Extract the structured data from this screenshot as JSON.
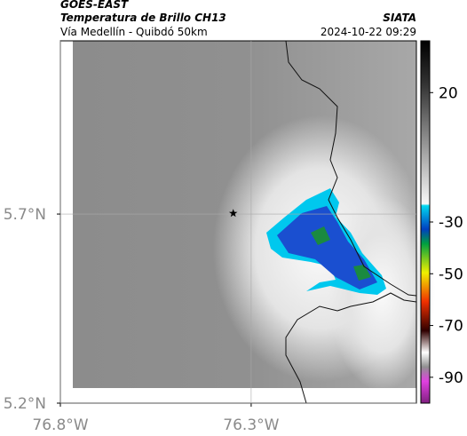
{
  "header": {
    "source": "GOES-EAST",
    "title": "Temperatura de Brillo CH13",
    "subtitle": "Vía Medellín - Quibdó 50km",
    "org": "SIATA",
    "timestamp": "2024-10-22 09:29"
  },
  "map": {
    "xlim": [
      -76.8,
      -75.867
    ],
    "ylim": [
      5.2,
      6.158
    ],
    "xticks": [
      {
        "value": -76.8,
        "label": "76.8°W"
      },
      {
        "value": -76.3,
        "label": "76.3°W"
      }
    ],
    "yticks": [
      {
        "value": 5.2,
        "label": "5.2°N"
      },
      {
        "value": 5.7,
        "label": "5.7°N"
      }
    ],
    "grid": true,
    "marker": {
      "lon": -76.347,
      "lat": 5.702
    }
  },
  "colorbar": {
    "lim": [
      40,
      -100
    ],
    "ticks": [
      20,
      -30,
      -50,
      -70,
      -90
    ]
  }
}
